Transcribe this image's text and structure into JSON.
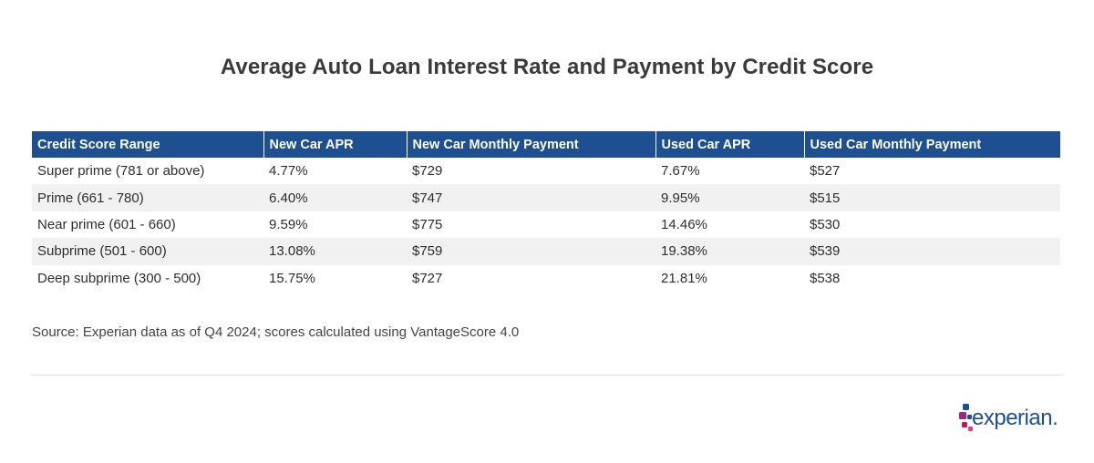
{
  "title": "Average Auto Loan Interest Rate and Payment by Credit Score",
  "source": "Source: Experian data as of Q4 2024; scores calculated using VantageScore 4.0",
  "logo_text": "experian.",
  "colors": {
    "header_bg": "#1d4f91",
    "header_text": "#ffffff",
    "alt_row_bg": "#f1f1f1",
    "logo_dot_purple": "#982881",
    "logo_dot_magenta": "#c2185b",
    "logo_dot_blue": "#1d4f91",
    "logo_dot_pink": "#e63888"
  },
  "chart_data": {
    "type": "table",
    "title": "Average Auto Loan Interest Rate and Payment by Credit Score",
    "columns": [
      "Credit Score Range",
      "New Car APR",
      "New Car Monthly Payment",
      "Used Car APR",
      "Used Car Monthly Payment"
    ],
    "rows": [
      [
        "Super prime (781 or above)",
        "4.77%",
        "$729",
        "7.67%",
        "$527"
      ],
      [
        "Prime (661 - 780)",
        "6.40%",
        "$747",
        "9.95%",
        "$515"
      ],
      [
        "Near prime (601 - 660)",
        "9.59%",
        "$775",
        "14.46%",
        "$530"
      ],
      [
        "Subprime (501 - 600)",
        "13.08%",
        "$759",
        "19.38%",
        "$539"
      ],
      [
        "Deep subprime (300 - 500)",
        "15.75%",
        "$727",
        "21.81%",
        "$538"
      ]
    ]
  }
}
